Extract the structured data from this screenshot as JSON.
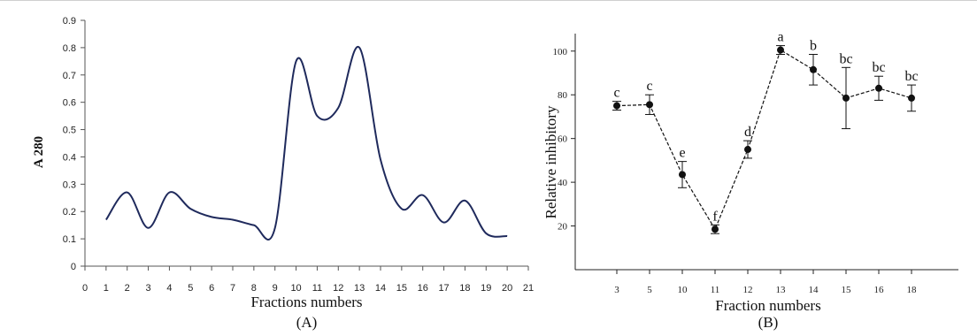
{
  "chart_data": [
    {
      "type": "line",
      "panel": "(A)",
      "xlabel": "Fractions numbers",
      "ylabel": "A 280",
      "xlim": [
        0,
        21
      ],
      "ylim": [
        0,
        0.9
      ],
      "x_ticks": [
        0,
        1,
        2,
        3,
        4,
        5,
        6,
        7,
        8,
        9,
        10,
        11,
        12,
        13,
        14,
        15,
        16,
        17,
        18,
        19,
        20,
        21
      ],
      "y_ticks": [
        0,
        0.1,
        0.2,
        0.3,
        0.4,
        0.5,
        0.6,
        0.7,
        0.8,
        0.9
      ],
      "y_tick_labels": [
        "0",
        "0.1",
        "0.2",
        "0.3",
        "0.4",
        "0.5",
        "0.6",
        "0.7",
        "0.8",
        "0.9"
      ],
      "line_color": "#1f2a5c",
      "grid": false,
      "x": [
        1,
        2,
        3,
        4,
        5,
        6,
        7,
        8,
        9,
        10,
        11,
        12,
        13,
        14,
        15,
        16,
        17,
        18,
        19,
        20
      ],
      "y": [
        0.17,
        0.27,
        0.14,
        0.27,
        0.21,
        0.18,
        0.17,
        0.15,
        0.14,
        0.75,
        0.55,
        0.58,
        0.8,
        0.39,
        0.21,
        0.26,
        0.16,
        0.24,
        0.12,
        0.11
      ]
    },
    {
      "type": "line",
      "panel": "(B)",
      "xlabel": "Fraction numbers",
      "ylabel": "Relative inhibitory",
      "ylim": [
        0,
        108
      ],
      "y_ticks": [
        20,
        40,
        60,
        80,
        100
      ],
      "categories": [
        "3",
        "5",
        "10",
        "11",
        "12",
        "13",
        "14",
        "15",
        "16",
        "18"
      ],
      "values": [
        75,
        75.5,
        43.5,
        18.5,
        55,
        100.5,
        91.5,
        78.5,
        83,
        78.5
      ],
      "error": [
        2,
        4.5,
        6,
        2,
        4,
        2,
        7,
        14,
        5.5,
        6
      ],
      "significance_letters": [
        "c",
        "c",
        "e",
        "f",
        "d",
        "a",
        "b",
        "bc",
        "bc",
        "bc"
      ],
      "line_style": "dashed",
      "line_color": "#111111",
      "marker": "filled-circle",
      "grid": false
    }
  ]
}
